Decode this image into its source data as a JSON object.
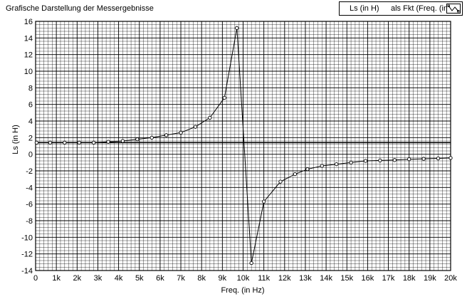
{
  "window": {
    "title": "Grafische Darstellung der Messergebnisse"
  },
  "legend": {
    "series_label": "Ls (in H)",
    "function_label": "als Fkt (Freq. (in",
    "swatch_icon": "line-with-markers-icon"
  },
  "chart_data": {
    "type": "line",
    "title": "",
    "xlabel": "Freq. (in Hz)",
    "ylabel": "Ls (in H)",
    "xlim": [
      0,
      20000
    ],
    "ylim": [
      -14,
      16
    ],
    "grid": true,
    "x_ticks": [
      0,
      1000,
      2000,
      3000,
      4000,
      5000,
      6000,
      7000,
      8000,
      9000,
      10000,
      11000,
      12000,
      13000,
      14000,
      15000,
      16000,
      17000,
      18000,
      19000,
      20000
    ],
    "x_tick_labels": [
      "0",
      "1k",
      "2k",
      "3k",
      "4k",
      "5k",
      "6k",
      "7k",
      "8k",
      "9k",
      "10k",
      "11k",
      "12k",
      "13k",
      "14k",
      "15k",
      "16k",
      "17k",
      "18k",
      "19k",
      "20k"
    ],
    "y_ticks": [
      -14,
      -12,
      -10,
      -8,
      -6,
      -4,
      -2,
      0,
      2,
      4,
      6,
      8,
      10,
      12,
      14,
      16
    ],
    "y_tick_labels": [
      "-14",
      "-12",
      "-10",
      "-8",
      "-6",
      "-4",
      "-2",
      "0",
      "2",
      "4",
      "6",
      "8",
      "10",
      "12",
      "14",
      "16"
    ],
    "reference_line_y": 1.4,
    "series": [
      {
        "name": "Ls (in H)",
        "marker": "circle",
        "color": "#000000",
        "x": [
          50,
          700,
          1400,
          2100,
          2800,
          3500,
          4200,
          4900,
          5600,
          6300,
          7000,
          7700,
          8400,
          9100,
          9700,
          10400,
          11000,
          11800,
          12500,
          13100,
          13800,
          14500,
          15200,
          15900,
          16600,
          17300,
          18000,
          18700,
          19400,
          20000
        ],
        "y": [
          1.4,
          1.4,
          1.4,
          1.4,
          1.4,
          1.5,
          1.6,
          1.8,
          2.0,
          2.3,
          2.6,
          3.3,
          4.4,
          6.8,
          15.2,
          -13.1,
          -5.7,
          -3.3,
          -2.4,
          -1.8,
          -1.4,
          -1.2,
          -1.0,
          -0.8,
          -0.75,
          -0.7,
          -0.6,
          -0.55,
          -0.5,
          -0.45
        ]
      }
    ]
  }
}
